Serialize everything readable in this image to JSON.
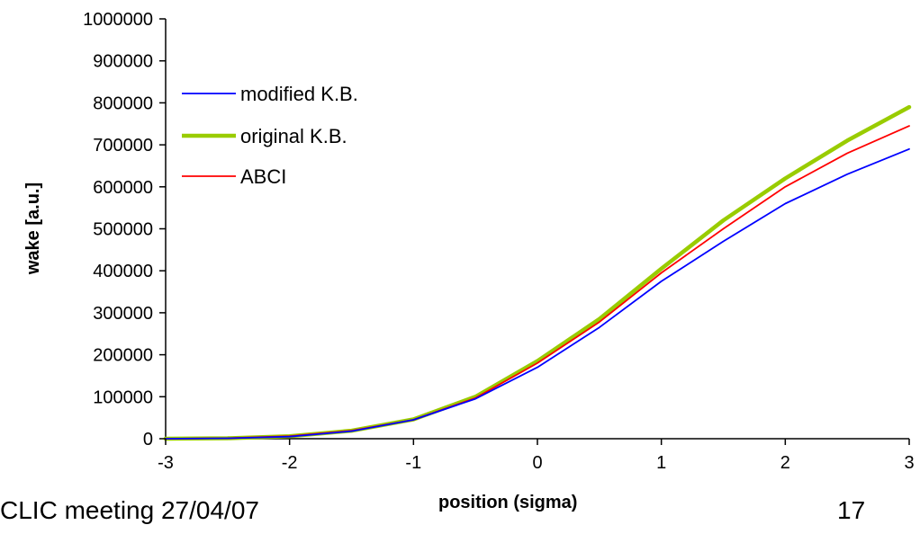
{
  "footer": {
    "meeting": "CLIC meeting 27/04/07",
    "page_number": "17"
  },
  "chart_data": {
    "type": "line",
    "xlabel": "position (sigma)",
    "ylabel": "wake [a.u.]",
    "xlim": [
      -3,
      3
    ],
    "ylim": [
      0,
      1000000
    ],
    "x_ticks": [
      "-3",
      "-2",
      "-1",
      "0",
      "1",
      "2",
      "3"
    ],
    "y_ticks": [
      "0",
      "100000",
      "200000",
      "300000",
      "400000",
      "500000",
      "600000",
      "700000",
      "800000",
      "900000",
      "1000000"
    ],
    "grid": false,
    "legend_position": "upper-left",
    "series": [
      {
        "name": "modified K.B.",
        "color": "#0000ff",
        "x": [
          -3,
          -2.5,
          -2,
          -1.5,
          -1,
          -0.5,
          0,
          0.5,
          1,
          1.5,
          2,
          2.5,
          3
        ],
        "y": [
          0,
          1000,
          5000,
          18000,
          45000,
          95000,
          170000,
          265000,
          375000,
          470000,
          560000,
          630000,
          690000
        ]
      },
      {
        "name": "original K.B.",
        "color": "#99cc00",
        "x": [
          -3,
          -2.5,
          -2,
          -1.5,
          -1,
          -0.5,
          0,
          0.5,
          1,
          1.5,
          2,
          2.5,
          3
        ],
        "y": [
          0,
          1000,
          6000,
          19000,
          46000,
          100000,
          185000,
          285000,
          405000,
          520000,
          620000,
          710000,
          790000
        ]
      },
      {
        "name": "ABCI",
        "color": "#ff0000",
        "x": [
          -3,
          -2.5,
          -2,
          -1.5,
          -1,
          -0.5,
          0,
          0.5,
          1,
          1.5,
          2,
          2.5,
          3
        ],
        "y": [
          0,
          1000,
          6000,
          19000,
          45000,
          97000,
          180000,
          278000,
          395000,
          500000,
          600000,
          680000,
          745000
        ]
      }
    ]
  }
}
